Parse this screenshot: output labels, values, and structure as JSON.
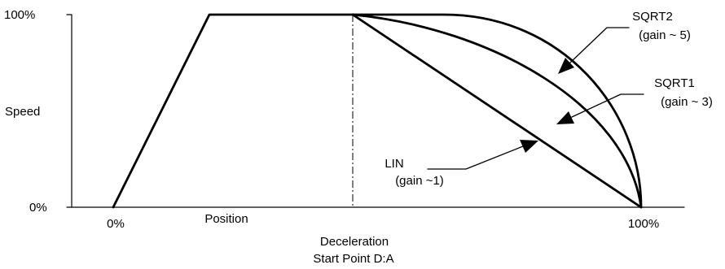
{
  "axes": {
    "y_top": "100%",
    "y_bottom": "0%",
    "y_title": "Speed",
    "x_start": "0%",
    "x_end": "100%",
    "x_title": "Position",
    "decel_label_line1": "Deceleration",
    "decel_label_line2": "Start Point D:A"
  },
  "curves": [
    {
      "id": "sqrt2",
      "name": "SQRT2",
      "gain": "(gain ~ 5)"
    },
    {
      "id": "sqrt1",
      "name": "SQRT1",
      "gain": "(gain ~ 3)"
    },
    {
      "id": "lin",
      "name": "LIN",
      "gain": "(gain ~1)"
    }
  ]
}
